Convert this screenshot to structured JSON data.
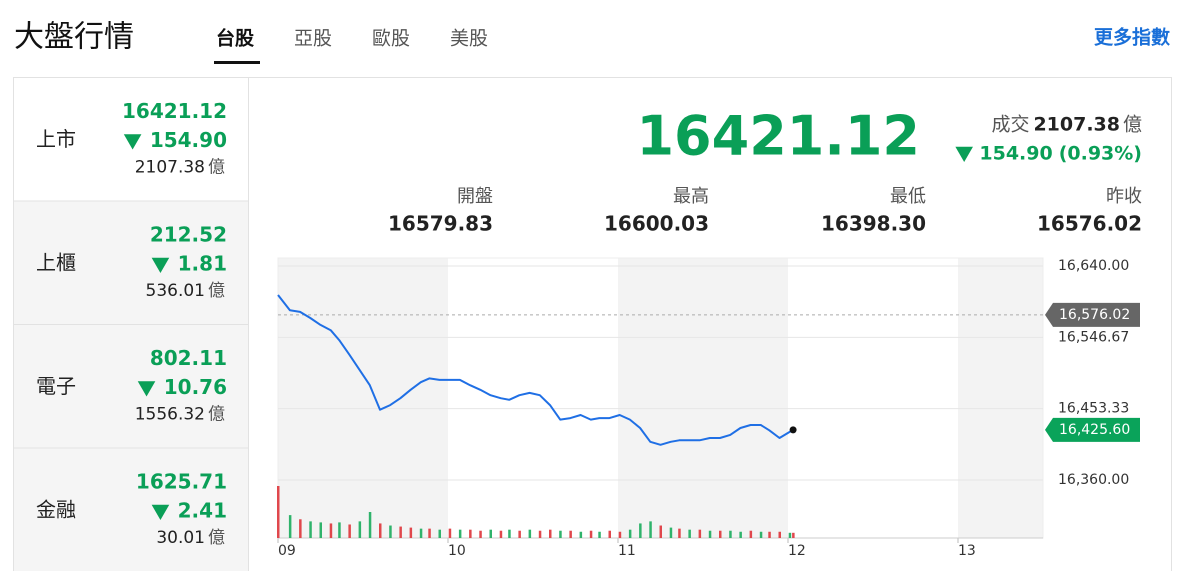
{
  "header": {
    "title": "大盤行情",
    "tabs": [
      "台股",
      "亞股",
      "歐股",
      "美股"
    ],
    "more": "更多指數"
  },
  "sidebar": {
    "rows": [
      {
        "name": "上市",
        "price": "16421.12",
        "change": "154.90",
        "volume": "2107.38",
        "unit": "億"
      },
      {
        "name": "上櫃",
        "price": "212.52",
        "change": "1.81",
        "volume": "536.01",
        "unit": "億"
      },
      {
        "name": "電子",
        "price": "802.11",
        "change": "10.76",
        "volume": "1556.32",
        "unit": "億"
      },
      {
        "name": "金融",
        "price": "1625.71",
        "change": "2.41",
        "volume": "30.01",
        "unit": "億"
      }
    ]
  },
  "quote": {
    "price": "16421.12",
    "volume_label": "成交",
    "volume": "2107.38",
    "unit": "億",
    "change": "154.90",
    "change_pct": "(0.93%)",
    "stats": [
      {
        "label": "開盤",
        "value": "16579.83"
      },
      {
        "label": "最高",
        "value": "16600.03"
      },
      {
        "label": "最低",
        "value": "16398.30"
      },
      {
        "label": "昨收",
        "value": "16576.02"
      }
    ]
  },
  "chart_data": {
    "type": "line",
    "color": "#1f6fe5",
    "x": [
      9.0,
      9.07,
      9.13,
      9.19,
      9.25,
      9.31,
      9.36,
      9.42,
      9.48,
      9.54,
      9.6,
      9.66,
      9.72,
      9.78,
      9.84,
      9.89,
      9.95,
      10.01,
      10.07,
      10.13,
      10.19,
      10.25,
      10.31,
      10.36,
      10.42,
      10.48,
      10.54,
      10.6,
      10.66,
      10.72,
      10.78,
      10.84,
      10.89,
      10.95,
      11.01,
      11.07,
      11.13,
      11.19,
      11.25,
      11.31,
      11.36,
      11.42,
      11.48,
      11.54,
      11.6,
      11.66,
      11.72,
      11.78,
      11.84,
      11.89,
      11.95,
      12.01,
      12.03
    ],
    "values": [
      16602,
      16582,
      16580,
      16572,
      16563,
      16556,
      16543,
      16524,
      16504,
      16484,
      16452,
      16458,
      16467,
      16478,
      16488,
      16493,
      16491,
      16491,
      16491,
      16484,
      16478,
      16471,
      16467,
      16465,
      16471,
      16474,
      16471,
      16458,
      16439,
      16441,
      16445,
      16439,
      16441,
      16441,
      16445,
      16439,
      16428,
      16410,
      16406,
      16410,
      16412,
      16412,
      16412,
      16415,
      16415,
      16419,
      16428,
      16432,
      16432,
      16425,
      16415,
      16423,
      16425.6
    ],
    "xlim": [
      9,
      13.5
    ],
    "xticks": [
      {
        "value": 9,
        "label": "09"
      },
      10,
      11,
      12,
      13
    ],
    "ylim": [
      16360,
      16640
    ],
    "yticks": [
      {
        "value": 16360,
        "label": "16,360.00"
      },
      {
        "value": 16453.33,
        "label": "16,453.33"
      },
      {
        "value": 16546.67,
        "label": "16,546.67"
      },
      {
        "value": 16640,
        "label": "16,640.00"
      }
    ],
    "reference": {
      "value": 16576.02,
      "label": "16,576.02"
    },
    "last_label": {
      "value": 16425.6,
      "label": "16,425.60"
    },
    "volume": {
      "values": [
        50,
        22,
        18,
        16,
        15,
        14,
        15,
        13,
        16,
        25,
        14,
        12,
        11,
        10,
        9,
        9,
        8,
        9,
        8,
        8,
        7,
        8,
        7,
        8,
        7,
        8,
        7,
        8,
        7,
        7,
        6,
        7,
        6,
        7,
        6,
        8,
        14,
        16,
        12,
        10,
        9,
        8,
        8,
        7,
        7,
        7,
        6,
        7,
        6,
        6,
        6,
        5,
        5
      ],
      "colors": [
        "#e0474c",
        "#2fb36b",
        "#e0474c",
        "#2fb36b",
        "#2fb36b",
        "#e0474c",
        "#2fb36b",
        "#e0474c",
        "#2fb36b",
        "#2fb36b",
        "#e0474c",
        "#2fb36b",
        "#e0474c",
        "#e0474c",
        "#2fb36b",
        "#e0474c",
        "#2fb36b",
        "#e0474c",
        "#2fb36b",
        "#e0474c",
        "#e0474c",
        "#2fb36b",
        "#e0474c",
        "#2fb36b",
        "#e0474c",
        "#2fb36b",
        "#e0474c",
        "#e0474c",
        "#2fb36b",
        "#e0474c",
        "#2fb36b",
        "#e0474c",
        "#2fb36b",
        "#e0474c",
        "#e0474c",
        "#2fb36b",
        "#2fb36b",
        "#2fb36b",
        "#e0474c",
        "#2fb36b",
        "#e0474c",
        "#2fb36b",
        "#e0474c",
        "#2fb36b",
        "#e0474c",
        "#2fb36b",
        "#2fb36b",
        "#e0474c",
        "#2fb36b",
        "#e0474c",
        "#e0474c",
        "#2fb36b",
        "#e0474c"
      ]
    }
  }
}
